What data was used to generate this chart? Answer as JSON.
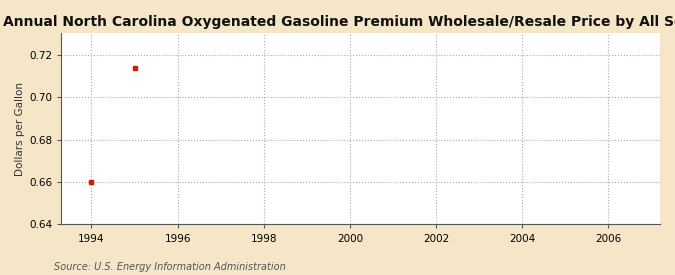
{
  "title": "Annual North Carolina Oxygenated Gasoline Premium Wholesale/Resale Price by All Sellers",
  "ylabel": "Dollars per Gallon",
  "source": "Source: U.S. Energy Information Administration",
  "x_data": [
    1994,
    1995
  ],
  "y_data": [
    0.66,
    0.714
  ],
  "marker_color": "#cc2200",
  "marker_size": 3.5,
  "figure_bg_color": "#f5e6c8",
  "plot_bg_color": "#ffffff",
  "xlim": [
    1993.3,
    2007.2
  ],
  "ylim": [
    0.64,
    0.7305
  ],
  "yticks": [
    0.64,
    0.66,
    0.68,
    0.7,
    0.72
  ],
  "xticks": [
    1994,
    1996,
    1998,
    2000,
    2002,
    2004,
    2006
  ],
  "grid_color": "#aaaaaa",
  "grid_linestyle": ":",
  "title_fontsize": 10,
  "label_fontsize": 7.5,
  "tick_fontsize": 7.5,
  "source_fontsize": 7
}
